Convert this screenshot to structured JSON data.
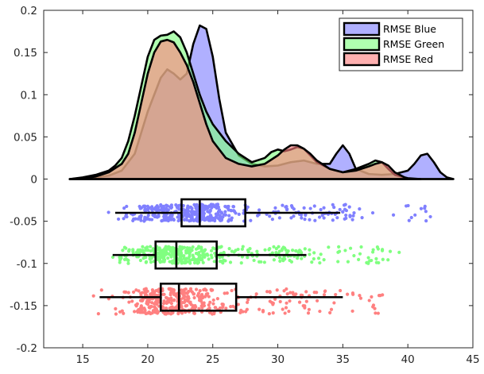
{
  "chart_data": {
    "type": "density-raincloud",
    "title": "",
    "xlabel": "",
    "ylabel": "",
    "xlim": [
      12,
      45
    ],
    "ylim": [
      -0.2,
      0.2
    ],
    "x_ticks": [
      15,
      20,
      25,
      30,
      35,
      40,
      45
    ],
    "x_tick_labels": [
      "15",
      "20",
      "25",
      "30",
      "35",
      "40",
      "45"
    ],
    "y_ticks": [
      -0.2,
      -0.15,
      -0.1,
      -0.05,
      0,
      0.05,
      0.1,
      0.15,
      0.2
    ],
    "y_tick_labels": [
      "-0.2",
      "-0.15",
      "-0.1",
      "-0.05",
      "0",
      "0.05",
      "0.1",
      "0.15",
      "0.2"
    ],
    "legend_position": "top-right",
    "series": [
      {
        "name": "RMSE Blue",
        "color": "#8080ff",
        "density": {
          "x": [
            14,
            15,
            16,
            17,
            18,
            19,
            20,
            21,
            21.5,
            22,
            22.5,
            23,
            23.5,
            24,
            24.5,
            25,
            25.5,
            26,
            27,
            28,
            29,
            30,
            31,
            32,
            33,
            34,
            34.5,
            35,
            35.5,
            36,
            37,
            38,
            39,
            40,
            40.5,
            41,
            41.5,
            42,
            42.5,
            43,
            43.5
          ],
          "y": [
            0,
            0.001,
            0.002,
            0.004,
            0.01,
            0.03,
            0.08,
            0.12,
            0.13,
            0.125,
            0.118,
            0.125,
            0.16,
            0.182,
            0.178,
            0.145,
            0.095,
            0.055,
            0.028,
            0.018,
            0.015,
            0.016,
            0.02,
            0.022,
            0.018,
            0.018,
            0.03,
            0.04,
            0.03,
            0.012,
            0.006,
            0.005,
            0.006,
            0.01,
            0.018,
            0.028,
            0.03,
            0.02,
            0.008,
            0.002,
            0
          ]
        },
        "box": {
          "whisker_low": 17.5,
          "q1": 22.6,
          "median": 24.0,
          "q3": 27.5,
          "whisker_high": 34.8,
          "y_center": -0.04
        },
        "jitter_y_range": [
          -0.03,
          -0.05
        ]
      },
      {
        "name": "RMSE Green",
        "color": "#80ff80",
        "density": {
          "x": [
            14,
            15,
            16,
            17,
            17.5,
            18,
            18.5,
            19,
            19.5,
            20,
            20.5,
            21,
            21.5,
            22,
            22.5,
            23,
            23.5,
            24,
            24.5,
            25,
            26,
            27,
            28,
            29,
            29.5,
            30,
            30.5,
            31,
            31.5,
            32,
            32.5,
            33,
            34,
            35,
            36,
            37,
            37.5,
            38,
            38.5,
            39,
            40,
            41
          ],
          "y": [
            0,
            0.002,
            0.005,
            0.01,
            0.016,
            0.025,
            0.045,
            0.075,
            0.11,
            0.145,
            0.165,
            0.17,
            0.171,
            0.175,
            0.168,
            0.15,
            0.125,
            0.1,
            0.08,
            0.065,
            0.045,
            0.03,
            0.02,
            0.025,
            0.032,
            0.035,
            0.033,
            0.035,
            0.038,
            0.036,
            0.028,
            0.02,
            0.012,
            0.008,
            0.012,
            0.018,
            0.022,
            0.02,
            0.012,
            0.005,
            0.001,
            0
          ]
        },
        "box": {
          "whisker_low": 17.3,
          "q1": 20.6,
          "median": 22.2,
          "q3": 25.3,
          "whisker_high": 32.2,
          "y_center": -0.09
        },
        "jitter_y_range": [
          -0.08,
          -0.1
        ]
      },
      {
        "name": "RMSE Red",
        "color": "#ff8080",
        "density": {
          "x": [
            14,
            15,
            16,
            17,
            18,
            18.5,
            19,
            19.5,
            20,
            20.5,
            21,
            21.5,
            22,
            22.5,
            23,
            23.5,
            24,
            24.5,
            25,
            26,
            27,
            28,
            29,
            30,
            30.5,
            31,
            31.5,
            32,
            32.5,
            33,
            34,
            35,
            36,
            37,
            37.5,
            38,
            38.5,
            39,
            40
          ],
          "y": [
            0,
            0.001,
            0.003,
            0.008,
            0.018,
            0.03,
            0.055,
            0.09,
            0.125,
            0.15,
            0.163,
            0.165,
            0.162,
            0.15,
            0.135,
            0.115,
            0.09,
            0.065,
            0.045,
            0.025,
            0.018,
            0.015,
            0.018,
            0.028,
            0.035,
            0.04,
            0.04,
            0.036,
            0.03,
            0.022,
            0.012,
            0.008,
            0.01,
            0.015,
            0.018,
            0.02,
            0.016,
            0.008,
            0
          ]
        },
        "box": {
          "whisker_low": 16.3,
          "q1": 21.0,
          "median": 22.4,
          "q3": 26.8,
          "whisker_high": 35.0,
          "y_center": -0.14
        },
        "jitter_y_range": [
          -0.13,
          -0.16
        ]
      }
    ]
  }
}
